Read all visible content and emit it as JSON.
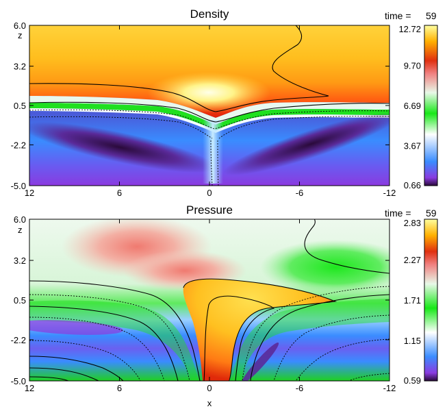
{
  "chart_data": [
    {
      "type": "heatmap",
      "title": "Density",
      "time_label": "time =",
      "time_value": "59",
      "xlabel": "",
      "ylabel": "z",
      "x_ticks": [
        "12",
        "6",
        "0",
        "-6",
        "-12"
      ],
      "x_tick_values": [
        12,
        6,
        0,
        -6,
        -12
      ],
      "y_ticks": [
        "6.0",
        "3.2",
        "0.5",
        "-2.2",
        "-5.0"
      ],
      "y_tick_values": [
        6.0,
        3.2,
        0.5,
        -2.2,
        -5.0
      ],
      "xlim": [
        12,
        -12
      ],
      "ylim": [
        -5.0,
        6.0
      ],
      "colorbar": {
        "labels": [
          "12.72",
          "9.70",
          "6.69",
          "3.67",
          "0.66"
        ],
        "values": [
          12.72,
          9.7,
          6.69,
          3.67,
          0.66
        ],
        "range": [
          0.66,
          12.72
        ]
      }
    },
    {
      "type": "heatmap",
      "title": "Pressure",
      "time_label": "time =",
      "time_value": "59",
      "xlabel": "x",
      "ylabel": "z",
      "x_ticks": [
        "12",
        "6",
        "0",
        "-6",
        "-12"
      ],
      "x_tick_values": [
        12,
        6,
        0,
        -6,
        -12
      ],
      "y_ticks": [
        "6.0",
        "3.2",
        "0.5",
        "-2.2",
        "-5.0"
      ],
      "y_tick_values": [
        6.0,
        3.2,
        0.5,
        -2.2,
        -5.0
      ],
      "xlim": [
        12,
        -12
      ],
      "ylim": [
        -5.0,
        6.0
      ],
      "colorbar": {
        "labels": [
          "2.83",
          "2.27",
          "1.71",
          "1.15",
          "0.59"
        ],
        "values": [
          2.83,
          2.27,
          1.71,
          1.15,
          0.59
        ],
        "range": [
          0.59,
          2.83
        ]
      }
    }
  ]
}
